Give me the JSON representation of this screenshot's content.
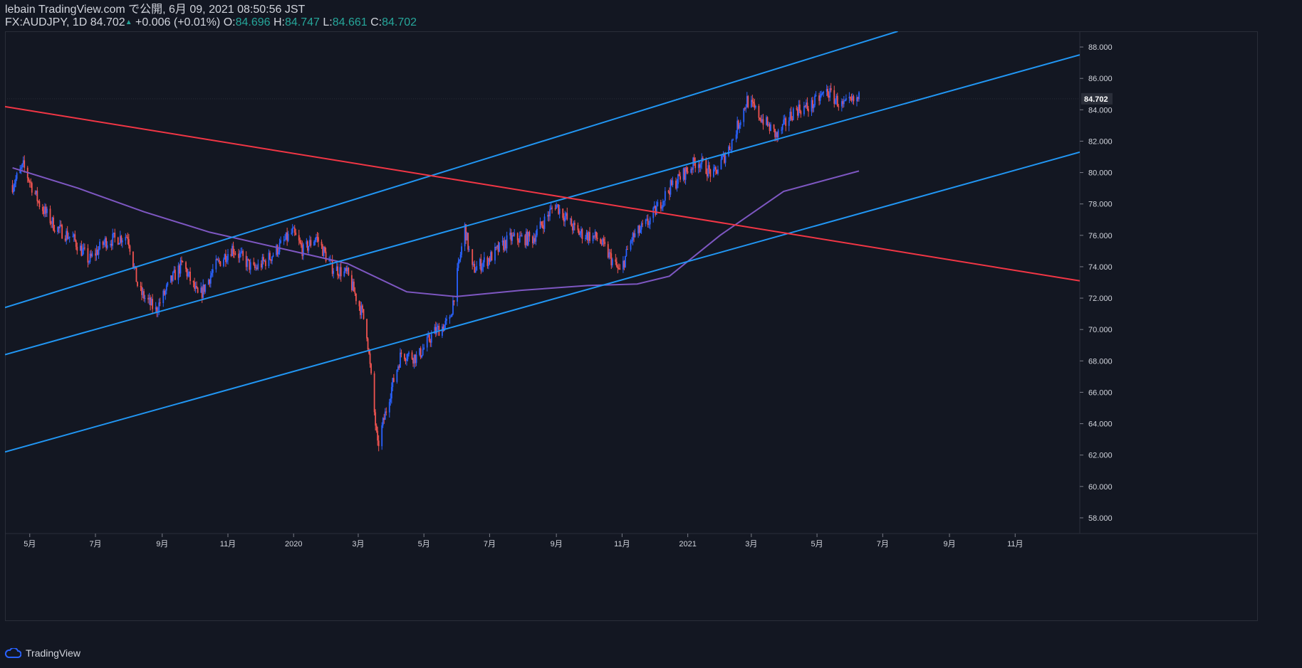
{
  "header": {
    "published": "lebain TradingView.com で公開, 6月 09, 2021 08:50:56 JST",
    "symbol": "FX:AUDJPY, 1D",
    "last": "84.702",
    "arrow": "▲",
    "change": "+0.006 (+0.01%)",
    "o_label": "O:",
    "o_val": "84.696",
    "h_label": "H:",
    "h_val": "84.747",
    "l_label": "L:",
    "l_val": "84.661",
    "c_label": "C:",
    "c_val": "84.702"
  },
  "footer": {
    "brand": "TradingView",
    "icon": "tradingview-cloud-icon"
  },
  "colors": {
    "bg": "#131722",
    "up": "#2962ff",
    "down": "#ef5350",
    "channel": "#2196f3",
    "trend": "#f23645",
    "ma": "#7e57c2"
  },
  "chart_data": {
    "type": "candlestick",
    "symbol": "FX:AUDJPY",
    "interval": "1D",
    "ylim": [
      57.0,
      89.0
    ],
    "y_ticks": [
      "88.000",
      "86.000",
      "84.000",
      "82.000",
      "80.000",
      "78.000",
      "76.000",
      "74.000",
      "72.000",
      "70.000",
      "68.000",
      "66.000",
      "64.000",
      "62.000",
      "60.000",
      "58.000"
    ],
    "x_ticks": [
      "5月",
      "7月",
      "9月",
      "11月",
      "2020",
      "3月",
      "5月",
      "7月",
      "9月",
      "11月",
      "2021",
      "3月",
      "5月",
      "7月",
      "9月",
      "11月"
    ],
    "last_price_label": "84.702",
    "price_path": [
      [
        "2019-04-15",
        79.2
      ],
      [
        "2019-04-25",
        80.4
      ],
      [
        "2019-05-10",
        78.0
      ],
      [
        "2019-05-25",
        76.5
      ],
      [
        "2019-06-10",
        75.8
      ],
      [
        "2019-06-25",
        74.4
      ],
      [
        "2019-07-10",
        75.6
      ],
      [
        "2019-07-31",
        76.0
      ],
      [
        "2019-08-10",
        72.5
      ],
      [
        "2019-08-26",
        71.2
      ],
      [
        "2019-09-10",
        73.2
      ],
      [
        "2019-09-20",
        74.2
      ],
      [
        "2019-10-05",
        72.0
      ],
      [
        "2019-10-20",
        74.0
      ],
      [
        "2019-11-05",
        75.2
      ],
      [
        "2019-11-25",
        73.8
      ],
      [
        "2019-12-10",
        74.6
      ],
      [
        "2019-12-31",
        76.2
      ],
      [
        "2020-01-10",
        75.0
      ],
      [
        "2020-01-22",
        75.9
      ],
      [
        "2020-02-05",
        74.0
      ],
      [
        "2020-02-20",
        73.5
      ],
      [
        "2020-03-05",
        71.0
      ],
      [
        "2020-03-09",
        69.8
      ],
      [
        "2020-03-19",
        62.5
      ],
      [
        "2020-03-30",
        65.8
      ],
      [
        "2020-04-10",
        68.5
      ],
      [
        "2020-04-25",
        68.2
      ],
      [
        "2020-05-10",
        69.8
      ],
      [
        "2020-05-25",
        70.5
      ],
      [
        "2020-06-08",
        76.5
      ],
      [
        "2020-06-15",
        73.8
      ],
      [
        "2020-06-30",
        74.5
      ],
      [
        "2020-07-20",
        75.8
      ],
      [
        "2020-08-10",
        75.8
      ],
      [
        "2020-08-31",
        78.0
      ],
      [
        "2020-09-20",
        76.2
      ],
      [
        "2020-10-10",
        75.8
      ],
      [
        "2020-10-30",
        73.6
      ],
      [
        "2020-11-10",
        75.8
      ],
      [
        "2020-11-25",
        76.8
      ],
      [
        "2020-12-15",
        79.0
      ],
      [
        "2021-01-10",
        80.8
      ],
      [
        "2021-01-25",
        79.8
      ],
      [
        "2021-02-10",
        81.8
      ],
      [
        "2021-02-25",
        84.6
      ],
      [
        "2021-03-10",
        83.5
      ],
      [
        "2021-03-25",
        82.3
      ],
      [
        "2021-04-10",
        84.0
      ],
      [
        "2021-04-25",
        84.2
      ],
      [
        "2021-05-10",
        85.2
      ],
      [
        "2021-05-25",
        84.2
      ],
      [
        "2021-06-09",
        84.7
      ]
    ],
    "moving_average": [
      [
        "2019-04-15",
        80.3
      ],
      [
        "2019-06-15",
        79.0
      ],
      [
        "2019-08-15",
        77.5
      ],
      [
        "2019-10-15",
        76.2
      ],
      [
        "2019-12-31",
        75.0
      ],
      [
        "2020-02-20",
        74.2
      ],
      [
        "2020-04-15",
        72.4
      ],
      [
        "2020-05-31",
        72.1
      ],
      [
        "2020-07-31",
        72.5
      ],
      [
        "2020-09-30",
        72.8
      ],
      [
        "2020-11-15",
        72.9
      ],
      [
        "2020-12-15",
        73.4
      ],
      [
        "2021-01-31",
        76.0
      ],
      [
        "2021-03-31",
        78.8
      ],
      [
        "2021-06-09",
        80.1
      ]
    ],
    "channel_lines": [
      {
        "from": [
          "2019-04-08",
          71.4
        ],
        "to": [
          "2021-07-15",
          89.0
        ]
      },
      {
        "from": [
          "2019-04-08",
          68.4
        ],
        "to": [
          "2021-12-31",
          87.5
        ]
      },
      {
        "from": [
          "2019-04-08",
          62.2
        ],
        "to": [
          "2021-12-31",
          81.3
        ]
      }
    ],
    "trend_line": {
      "from": [
        "2019-04-08",
        84.2
      ],
      "to": [
        "2021-12-31",
        73.1
      ]
    }
  }
}
